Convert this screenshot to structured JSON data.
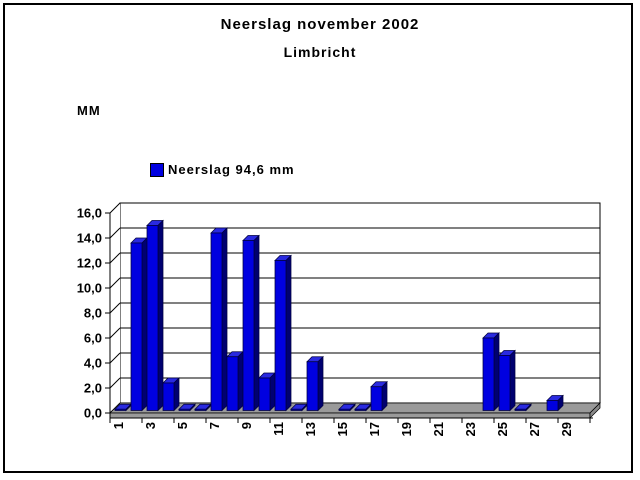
{
  "chart_data": {
    "type": "bar",
    "style": "3d-column",
    "title": "Neerslag november 2002",
    "subtitle": "Limbricht",
    "y_axis_unit": "MM",
    "legend": {
      "label": "Neerslag 94,6 mm",
      "marker_color": "#0000e0",
      "position": "upper-left"
    },
    "total_mm": "94,6",
    "xlabel": "",
    "ylabel": "MM",
    "ylim": [
      0,
      16
    ],
    "grid": true,
    "categories": [
      1,
      2,
      3,
      4,
      5,
      6,
      7,
      8,
      9,
      10,
      11,
      12,
      13,
      14,
      15,
      16,
      17,
      18,
      19,
      20,
      21,
      22,
      23,
      24,
      25,
      26,
      27,
      28,
      29,
      30
    ],
    "values": [
      0.1,
      13.4,
      14.8,
      2.2,
      0.1,
      0.1,
      14.2,
      4.3,
      13.6,
      2.6,
      12.0,
      0.1,
      3.9,
      0,
      0.1,
      0.1,
      1.9,
      0,
      0,
      0,
      0,
      0,
      0,
      5.8,
      4.4,
      0.1,
      0,
      0.8,
      0,
      0
    ],
    "x_ticks": [
      {
        "label": "1",
        "day": 1
      },
      {
        "label": "3",
        "day": 3
      },
      {
        "label": "5",
        "day": 5
      },
      {
        "label": "7",
        "day": 7
      },
      {
        "label": "9",
        "day": 9
      },
      {
        "label": "11",
        "day": 11
      },
      {
        "label": "13",
        "day": 13
      },
      {
        "label": "15",
        "day": 15
      },
      {
        "label": "17",
        "day": 17
      },
      {
        "label": "19",
        "day": 19
      },
      {
        "label": "21",
        "day": 21
      },
      {
        "label": "23",
        "day": 23
      },
      {
        "label": "25",
        "day": 25
      },
      {
        "label": "27",
        "day": 27
      },
      {
        "label": "29",
        "day": 29
      }
    ],
    "y_ticks": [
      {
        "label": "0,0",
        "value": 0
      },
      {
        "label": "2,0",
        "value": 2
      },
      {
        "label": "4,0",
        "value": 4
      },
      {
        "label": "6,0",
        "value": 6
      },
      {
        "label": "8,0",
        "value": 8
      },
      {
        "label": "10,0",
        "value": 10
      },
      {
        "label": "12,0",
        "value": 12
      },
      {
        "label": "14,0",
        "value": 14
      },
      {
        "label": "16,0",
        "value": 16
      }
    ],
    "colors": {
      "bar_front": "#0000e0",
      "bar_side": "#000070",
      "bar_top": "#2a2ae0",
      "bar_outline": "#000040",
      "floor": "#9a9a9a",
      "floor_side": "#8a8a8a",
      "wall": "#ffffff",
      "gridline": "#000000"
    }
  }
}
